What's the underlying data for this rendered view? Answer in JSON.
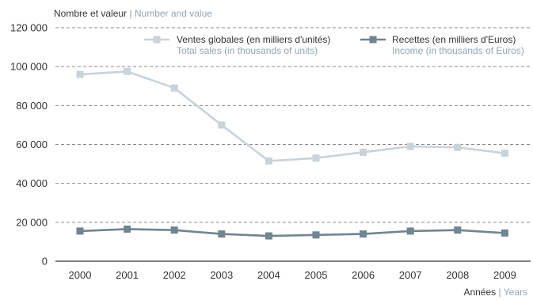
{
  "chart_data": {
    "type": "line",
    "x": [
      "2000",
      "2001",
      "2002",
      "2003",
      "2004",
      "2005",
      "2006",
      "2007",
      "2008",
      "2009"
    ],
    "series": [
      {
        "name": "Ventes globales (en milliers d'unités)",
        "name_en": "Total sales (in thousands of units)",
        "color": "#c9d3d9",
        "values": [
          96000,
          97500,
          89000,
          70000,
          51500,
          53000,
          56000,
          59000,
          58500,
          55500
        ]
      },
      {
        "name": "Recettes (en milliers d'Euros)",
        "name_en": "Income (in thousands of Euros)",
        "color": "#6f8591",
        "values": [
          15500,
          16500,
          16000,
          14000,
          13000,
          13500,
          14000,
          15500,
          16000,
          14500
        ]
      }
    ],
    "y_ticks": [
      "0",
      "20 000",
      "40 000",
      "60 000",
      "80 000",
      "100 000",
      "120 000"
    ],
    "ylim": [
      0,
      120000
    ],
    "ylabel": "Nombre et valeur",
    "ylabel_en": "Number and value",
    "xlabel": "Années",
    "xlabel_en": "Years",
    "grid": "horizontal-dashed",
    "legend_position": "top-right"
  }
}
